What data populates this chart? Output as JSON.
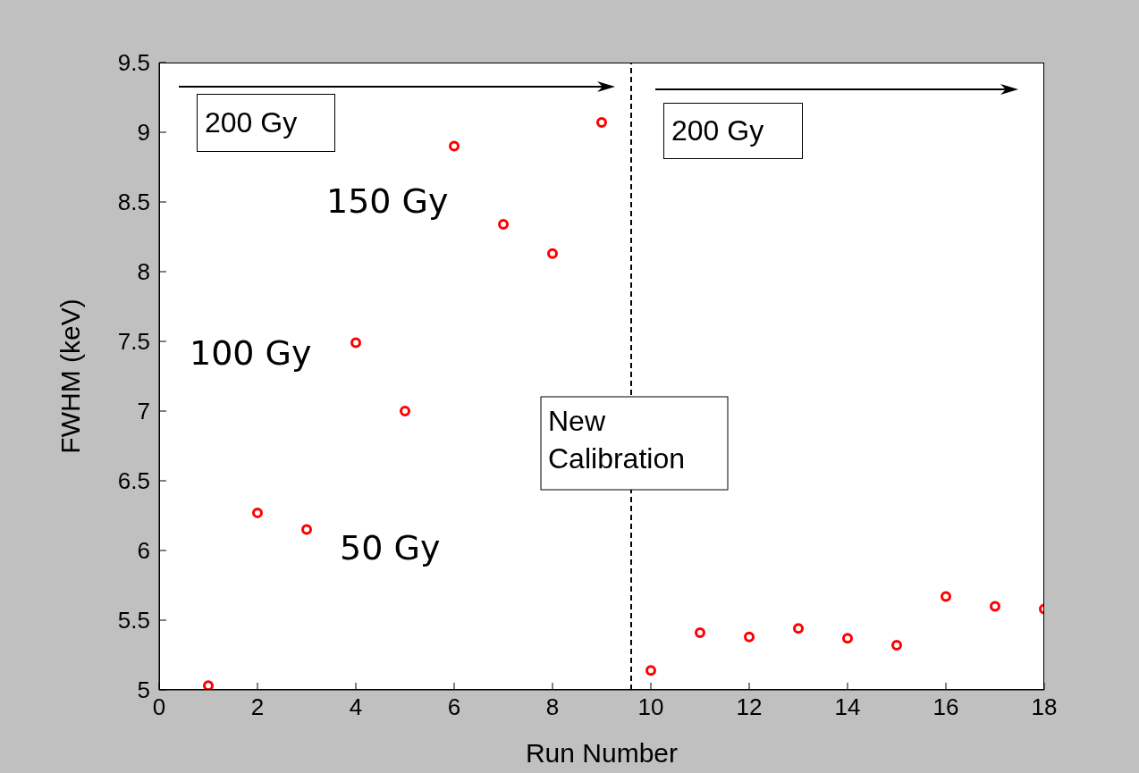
{
  "chart_data": {
    "type": "scatter",
    "xlabel": "Run Number",
    "ylabel": "FWHM (keV)",
    "x": [
      1,
      2,
      3,
      4,
      5,
      6,
      7,
      8,
      9,
      10,
      11,
      12,
      13,
      14,
      15,
      16,
      17,
      18
    ],
    "series": [
      {
        "color": "#ff0000",
        "values": [
          5.03,
          6.27,
          6.15,
          7.49,
          7.0,
          8.9,
          8.34,
          8.13,
          9.07,
          5.14,
          5.41,
          5.38,
          5.44,
          5.37,
          5.32,
          5.67,
          5.6,
          5.58
        ]
      }
    ],
    "xlim": [
      0,
      18
    ],
    "xticks": [
      0,
      2,
      4,
      6,
      8,
      10,
      12,
      14,
      16,
      18
    ],
    "ylim": [
      5,
      9.5
    ],
    "yticks": [
      5,
      5.5,
      6,
      6.5,
      7,
      7.5,
      8,
      8.5,
      9,
      9.5
    ],
    "grid": false,
    "legend": false,
    "marker": "circle",
    "ref_lines": [
      {
        "axis": "x",
        "value": 9.6,
        "label": "New Calibration",
        "color": "#000000",
        "line_style": "dashed"
      }
    ],
    "annotations": [
      "200 Gy",
      "150 Gy",
      "100 Gy",
      "50 Gy",
      "200 Gy"
    ]
  }
}
